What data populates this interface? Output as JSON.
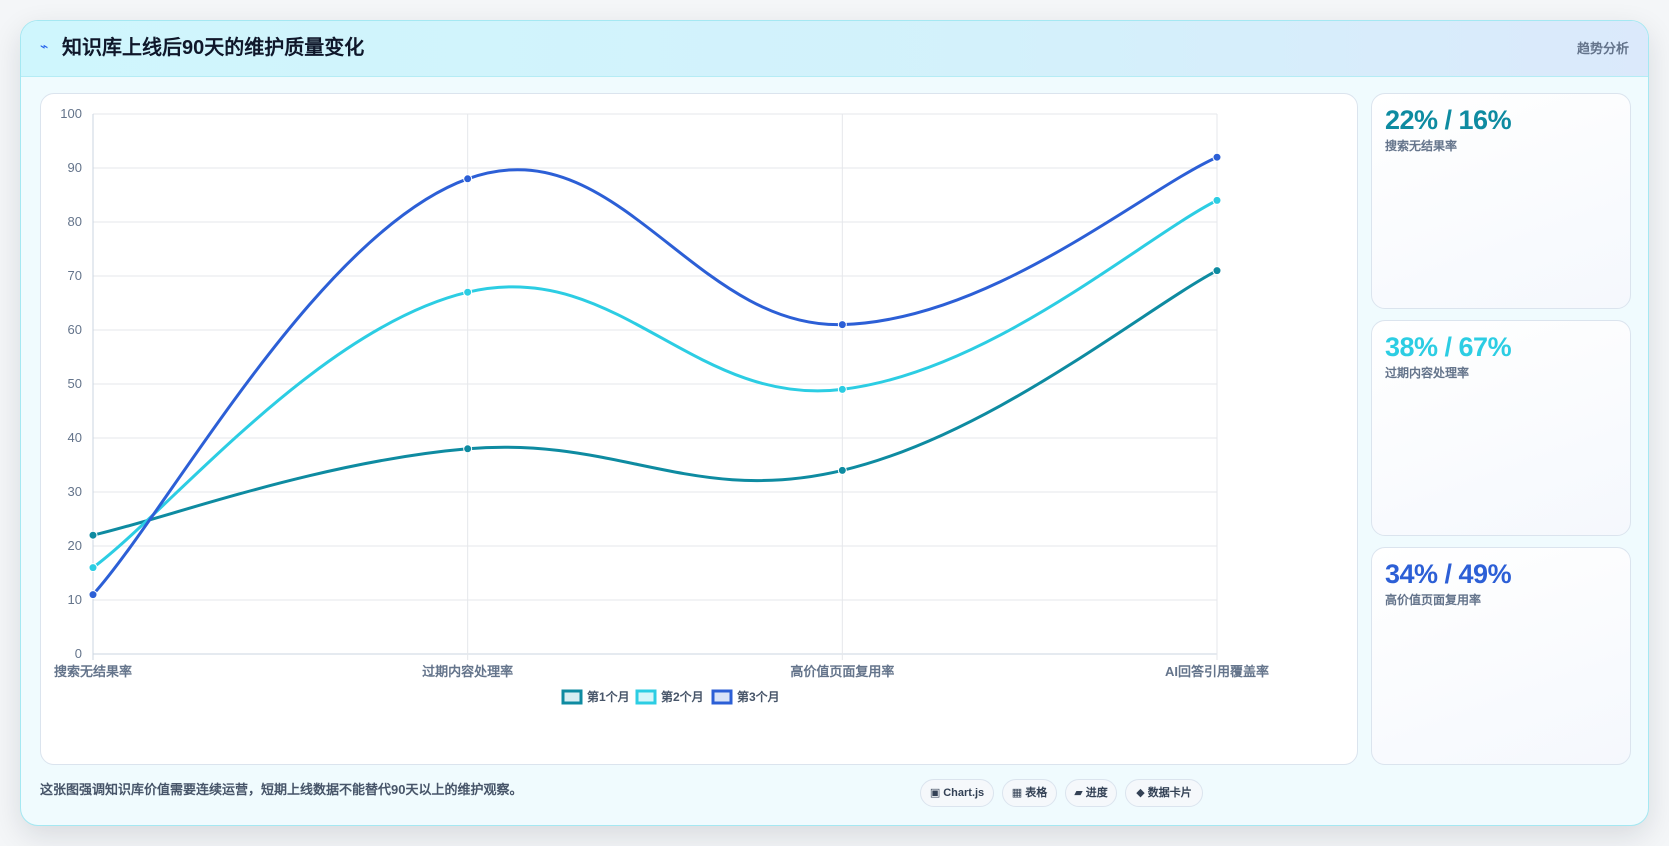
{
  "header": {
    "icon": "lightning-icon",
    "title": "知识库上线后90天的维护质量变化",
    "tag": "趋势分析"
  },
  "colors": {
    "series1": "#0e8ba1",
    "series2": "#2ccde3",
    "series3": "#2c5fd6",
    "accent_blue": "#2563eb"
  },
  "stats": [
    {
      "value": "22% / 16%",
      "label": "搜索无结果率",
      "color": "#0e8ba1"
    },
    {
      "value": "38% / 67%",
      "label": "过期内容处理率",
      "color": "#2ccde3"
    },
    {
      "value": "34% / 49%",
      "label": "高价值页面复用率",
      "color": "#2c5fd6"
    }
  ],
  "footer": {
    "note": "这张图强调知识库价值需要连续运营，短期上线数据不能替代90天以上的维护观察。",
    "chips": [
      {
        "glyph": "▣",
        "label": "Chart.js",
        "icon": "chart-icon"
      },
      {
        "glyph": "▦",
        "label": "表格",
        "icon": "table-icon"
      },
      {
        "glyph": "▰",
        "label": "进度",
        "icon": "progress-icon"
      },
      {
        "glyph": "◆",
        "label": "数据卡片",
        "icon": "card-icon"
      }
    ]
  },
  "chart_data": {
    "type": "line",
    "categories": [
      "搜索无结果率",
      "过期内容处理率",
      "高价值页面复用率",
      "AI回答引用覆盖率"
    ],
    "series": [
      {
        "name": "第1个月",
        "values": [
          22,
          38,
          34,
          71
        ],
        "color": "#0e8ba1",
        "fill": "#d7eef2"
      },
      {
        "name": "第2个月",
        "values": [
          16,
          67,
          49,
          84
        ],
        "color": "#2ccde3",
        "fill": "#d6f6fa"
      },
      {
        "name": "第3个月",
        "values": [
          11,
          88,
          61,
          92
        ],
        "color": "#2c5fd6",
        "fill": "#d8e3f8"
      }
    ],
    "ylim": [
      0,
      100
    ],
    "yticks": [
      0,
      10,
      20,
      30,
      40,
      50,
      60,
      70,
      80,
      90,
      100
    ],
    "grid": true,
    "smooth": true,
    "legend": "bottom-center"
  }
}
